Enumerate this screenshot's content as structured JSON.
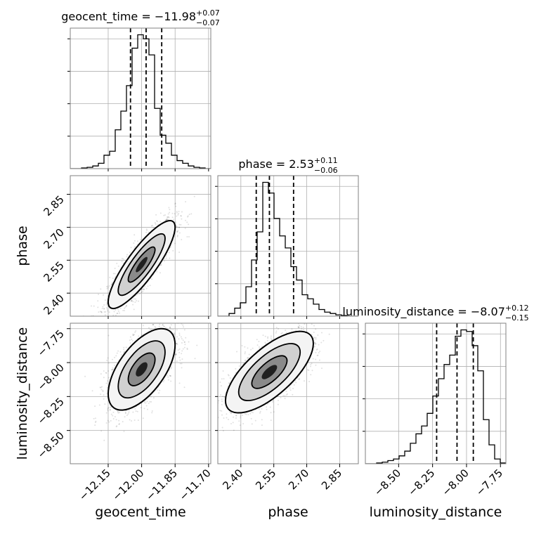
{
  "chart_data": {
    "type": "corner",
    "parameters": [
      "geocent_time",
      "phase",
      "luminosity_distance"
    ],
    "axis_labels": {
      "x": [
        "geocent_time",
        "phase",
        "luminosity_distance"
      ],
      "y": [
        "phase",
        "luminosity_distance"
      ]
    },
    "titles": [
      {
        "name": "geocent_time",
        "median": "−11.98",
        "plus": "+0.07",
        "minus": "−0.07"
      },
      {
        "name": "phase",
        "median": "2.53",
        "plus": "+0.11",
        "minus": "−0.06"
      },
      {
        "name": "luminosity_distance",
        "median": "−8.07",
        "plus": "+0.12",
        "minus": "−0.15"
      }
    ],
    "ranges": {
      "geocent_time": [
        -12.32,
        -11.69
      ],
      "phase": [
        2.295,
        2.935
      ],
      "luminosity_distance": [
        -8.745,
        -7.71
      ]
    },
    "ticks": {
      "geocent_time": {
        "values": [
          -12.15,
          -12.0,
          -11.85,
          -11.7
        ],
        "labels": [
          "−12.15",
          "−12.00",
          "−11.85",
          "−11.70"
        ]
      },
      "phase": {
        "values": [
          2.4,
          2.55,
          2.7,
          2.85
        ],
        "labels": [
          "2.40",
          "2.55",
          "2.70",
          "2.85"
        ]
      },
      "luminosity_distance": {
        "values": [
          -8.5,
          -8.25,
          -8.0,
          -7.75
        ],
        "labels": [
          "−8.50",
          "−8.25",
          "−8.00",
          "−7.75"
        ]
      }
    },
    "quantile_lines": {
      "geocent_time": [
        -12.05,
        -11.98,
        -11.91
      ],
      "phase": [
        2.47,
        2.53,
        2.64
      ],
      "luminosity_distance": [
        -8.22,
        -8.07,
        -7.95
      ]
    },
    "histograms": {
      "geocent_time": [
        0,
        0,
        0.5,
        1,
        2,
        4,
        10,
        13,
        29,
        43,
        62,
        90,
        100,
        97,
        85,
        45,
        25,
        19,
        10,
        6,
        4,
        2,
        1,
        0.5,
        0
      ],
      "phase": [
        0,
        0,
        2,
        6,
        10,
        22,
        42,
        63,
        100,
        92,
        73,
        60,
        51,
        37,
        27,
        16,
        13,
        9,
        5,
        3,
        2,
        1,
        0.5,
        0,
        0
      ],
      "luminosity_distance": [
        0,
        0,
        0.5,
        1,
        2,
        3,
        5,
        8,
        13,
        19,
        24,
        32,
        43,
        54,
        63,
        69,
        81,
        85,
        84,
        75,
        59,
        28,
        12,
        3,
        0.5
      ]
    },
    "correlations": {
      "phase_vs_geocent_time": {
        "center": [
          -12.0,
          2.53
        ],
        "sd": [
          0.075,
          0.1
        ],
        "rho": 0.85
      },
      "luminosity_distance_vs_geocent_time": {
        "center": [
          -12.0,
          -8.05
        ],
        "sd": [
          0.075,
          0.15
        ],
        "rho": 0.6
      },
      "luminosity_distance_vs_phase": {
        "center": [
          2.53,
          -8.07
        ],
        "sd": [
          0.1,
          0.15
        ],
        "rho": 0.7
      }
    },
    "grid": true
  }
}
